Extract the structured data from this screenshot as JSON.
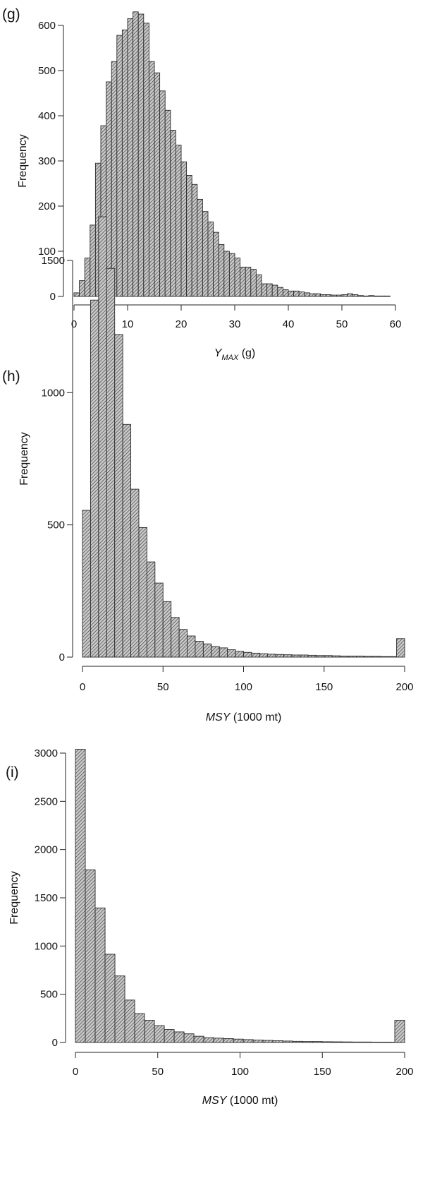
{
  "chart_data": [
    {
      "type": "bar",
      "panel_label": "(g)",
      "ylabel": "Frequency",
      "xlabel": {
        "main": "Y",
        "sub": "MAX",
        "suffix": " (g)"
      },
      "xticks": [
        0,
        10,
        20,
        30,
        40,
        50,
        60
      ],
      "yticks": [
        0,
        100,
        200,
        300,
        400,
        500,
        600
      ],
      "xlim": [
        0,
        60
      ],
      "ylim": [
        0,
        600
      ],
      "bin_start": 0,
      "bin_width": 1,
      "values": [
        8,
        35,
        85,
        158,
        295,
        378,
        475,
        520,
        578,
        590,
        615,
        630,
        625,
        605,
        520,
        495,
        455,
        412,
        368,
        335,
        298,
        268,
        248,
        215,
        188,
        165,
        142,
        115,
        100,
        95,
        85,
        65,
        65,
        60,
        48,
        28,
        28,
        25,
        20,
        15,
        12,
        12,
        10,
        8,
        6,
        6,
        4,
        4,
        3,
        3,
        4,
        6,
        4,
        2,
        1,
        2,
        1,
        1,
        1
      ]
    },
    {
      "type": "bar",
      "panel_label": "(h)",
      "ylabel": "Frequency",
      "xlabel": {
        "main": "MSY",
        "suffix": " (1000 mt)"
      },
      "xticks": [
        0,
        50,
        100,
        150,
        200
      ],
      "yticks": [
        0,
        500,
        1000,
        1500
      ],
      "xlim": [
        0,
        200
      ],
      "ylim": [
        0,
        1500
      ],
      "bin_start": 0,
      "bin_width": 5,
      "values": [
        555,
        1350,
        1665,
        1470,
        1220,
        880,
        635,
        490,
        360,
        280,
        210,
        150,
        105,
        80,
        60,
        50,
        40,
        35,
        28,
        22,
        18,
        15,
        13,
        11,
        10,
        9,
        8,
        8,
        7,
        6,
        6,
        5,
        4,
        4,
        4,
        3,
        3,
        2,
        2,
        70
      ]
    },
    {
      "type": "bar",
      "panel_label": "(i)",
      "ylabel": "Frequency",
      "xlabel": {
        "main": "MSY",
        "suffix": " (1000 mt)"
      },
      "xticks": [
        0,
        50,
        100,
        150,
        200
      ],
      "yticks": [
        0,
        500,
        1000,
        1500,
        2000,
        2500,
        3000
      ],
      "xlim": [
        0,
        200
      ],
      "ylim": [
        0,
        3000
      ],
      "bin_start": 0,
      "bin_width": 6,
      "values": [
        3040,
        1790,
        1395,
        915,
        690,
        440,
        300,
        230,
        175,
        135,
        110,
        90,
        65,
        50,
        45,
        40,
        35,
        30,
        25,
        22,
        18,
        15,
        12,
        10,
        10,
        8,
        7,
        6,
        5,
        5,
        4,
        4,
        3,
        230
      ]
    }
  ]
}
